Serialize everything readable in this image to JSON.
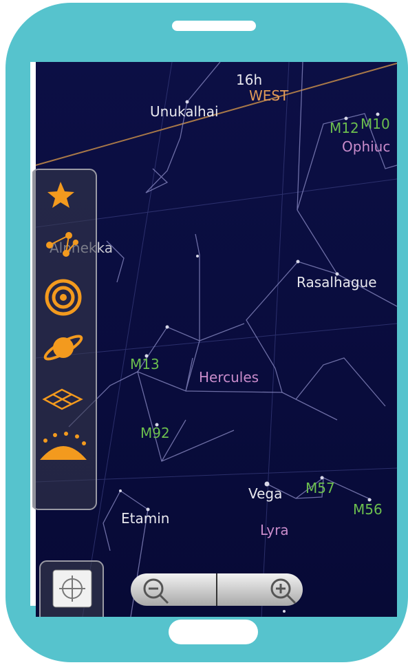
{
  "sky": {
    "grid_labels": {
      "hour": "16h",
      "direction": "WEST"
    },
    "stars": [
      "Unukalhai",
      "Alphekka",
      "Rasalhague",
      "Vega",
      "Etamin"
    ],
    "messier": [
      "M12",
      "M10",
      "M13",
      "M92",
      "M57",
      "M56"
    ],
    "constellations": [
      "Ophiuc",
      "Hercules",
      "Lyra"
    ]
  }
}
